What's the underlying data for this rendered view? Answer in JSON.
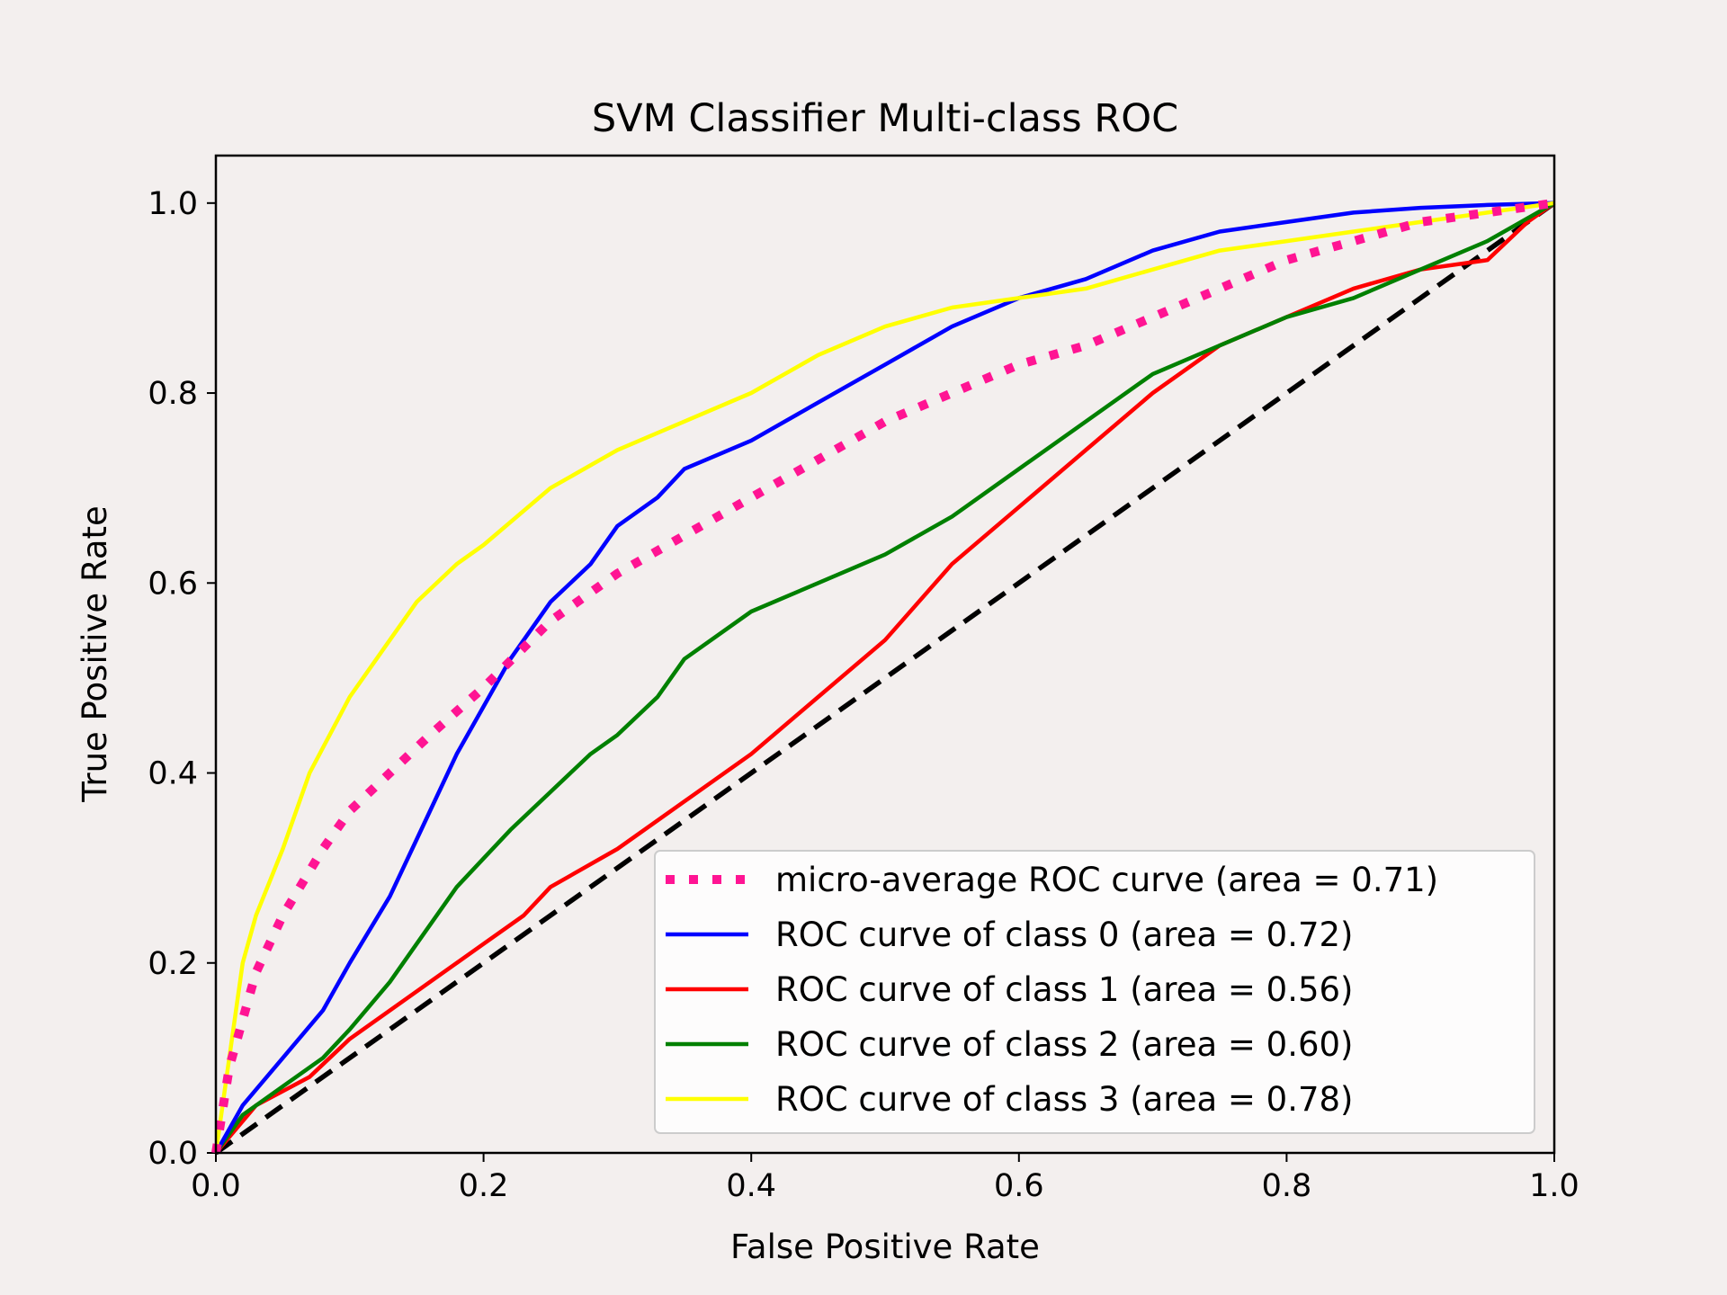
{
  "chart_data": {
    "type": "line",
    "title": "SVM Classifier Multi-class ROC",
    "xlabel": "False Positive Rate",
    "ylabel": "True Positive Rate",
    "xlim": [
      0.0,
      1.0
    ],
    "ylim": [
      0.0,
      1.05
    ],
    "xticks": [
      "0.0",
      "0.2",
      "0.4",
      "0.6",
      "0.8",
      "1.0"
    ],
    "yticks": [
      "0.0",
      "0.2",
      "0.4",
      "0.6",
      "0.8",
      "1.0"
    ],
    "grid": false,
    "legend_position": "lower-right",
    "series": [
      {
        "name": "micro-average ROC curve (area = 0.71)",
        "color": "#ff1493",
        "style": "dotted",
        "x": [
          0.0,
          0.01,
          0.03,
          0.05,
          0.08,
          0.1,
          0.13,
          0.16,
          0.2,
          0.25,
          0.3,
          0.35,
          0.4,
          0.45,
          0.5,
          0.55,
          0.6,
          0.65,
          0.7,
          0.75,
          0.8,
          0.85,
          0.9,
          0.95,
          1.0
        ],
        "y": [
          0.0,
          0.09,
          0.19,
          0.25,
          0.32,
          0.36,
          0.4,
          0.44,
          0.49,
          0.56,
          0.61,
          0.65,
          0.69,
          0.73,
          0.77,
          0.8,
          0.83,
          0.85,
          0.88,
          0.91,
          0.94,
          0.96,
          0.98,
          0.99,
          1.0
        ]
      },
      {
        "name": "ROC curve of class 0 (area = 0.72)",
        "color": "#0000ff",
        "style": "solid",
        "x": [
          0.0,
          0.02,
          0.05,
          0.08,
          0.1,
          0.13,
          0.15,
          0.18,
          0.2,
          0.22,
          0.25,
          0.28,
          0.3,
          0.33,
          0.35,
          0.4,
          0.45,
          0.5,
          0.55,
          0.6,
          0.65,
          0.7,
          0.75,
          0.8,
          0.85,
          0.9,
          0.95,
          1.0
        ],
        "y": [
          0.0,
          0.05,
          0.1,
          0.15,
          0.2,
          0.27,
          0.33,
          0.42,
          0.47,
          0.52,
          0.58,
          0.62,
          0.66,
          0.69,
          0.72,
          0.75,
          0.79,
          0.83,
          0.87,
          0.9,
          0.92,
          0.95,
          0.97,
          0.98,
          0.99,
          0.995,
          0.998,
          1.0
        ]
      },
      {
        "name": "ROC curve of class 1 (area = 0.56)",
        "color": "#ff0000",
        "style": "solid",
        "x": [
          0.0,
          0.03,
          0.07,
          0.1,
          0.15,
          0.2,
          0.23,
          0.25,
          0.3,
          0.35,
          0.4,
          0.45,
          0.5,
          0.55,
          0.6,
          0.65,
          0.7,
          0.75,
          0.8,
          0.85,
          0.9,
          0.95,
          0.98,
          1.0
        ],
        "y": [
          0.0,
          0.05,
          0.08,
          0.12,
          0.17,
          0.22,
          0.25,
          0.28,
          0.32,
          0.37,
          0.42,
          0.48,
          0.54,
          0.62,
          0.68,
          0.74,
          0.8,
          0.85,
          0.88,
          0.91,
          0.93,
          0.94,
          0.98,
          1.0
        ]
      },
      {
        "name": "ROC curve of class 2 (area = 0.60)",
        "color": "#008000",
        "style": "solid",
        "x": [
          0.0,
          0.02,
          0.05,
          0.08,
          0.1,
          0.13,
          0.15,
          0.18,
          0.2,
          0.22,
          0.25,
          0.28,
          0.3,
          0.33,
          0.35,
          0.4,
          0.45,
          0.5,
          0.55,
          0.6,
          0.65,
          0.7,
          0.75,
          0.8,
          0.85,
          0.9,
          0.95,
          1.0
        ],
        "y": [
          0.0,
          0.04,
          0.07,
          0.1,
          0.13,
          0.18,
          0.22,
          0.28,
          0.31,
          0.34,
          0.38,
          0.42,
          0.44,
          0.48,
          0.52,
          0.57,
          0.6,
          0.63,
          0.67,
          0.72,
          0.77,
          0.82,
          0.85,
          0.88,
          0.9,
          0.93,
          0.96,
          1.0
        ]
      },
      {
        "name": "ROC curve of class 3 (area = 0.78)",
        "color": "#ffff00",
        "style": "solid",
        "x": [
          0.0,
          0.01,
          0.02,
          0.03,
          0.05,
          0.07,
          0.1,
          0.13,
          0.15,
          0.18,
          0.2,
          0.25,
          0.3,
          0.35,
          0.4,
          0.45,
          0.5,
          0.55,
          0.6,
          0.65,
          0.7,
          0.75,
          0.8,
          0.85,
          0.9,
          0.95,
          1.0
        ],
        "y": [
          0.0,
          0.1,
          0.2,
          0.25,
          0.32,
          0.4,
          0.48,
          0.54,
          0.58,
          0.62,
          0.64,
          0.7,
          0.74,
          0.77,
          0.8,
          0.84,
          0.87,
          0.89,
          0.9,
          0.91,
          0.93,
          0.95,
          0.96,
          0.97,
          0.98,
          0.99,
          1.0
        ]
      },
      {
        "name": "",
        "color": "#000000",
        "style": "dashed",
        "x": [
          0.0,
          1.0
        ],
        "y": [
          0.0,
          1.0
        ]
      }
    ]
  }
}
